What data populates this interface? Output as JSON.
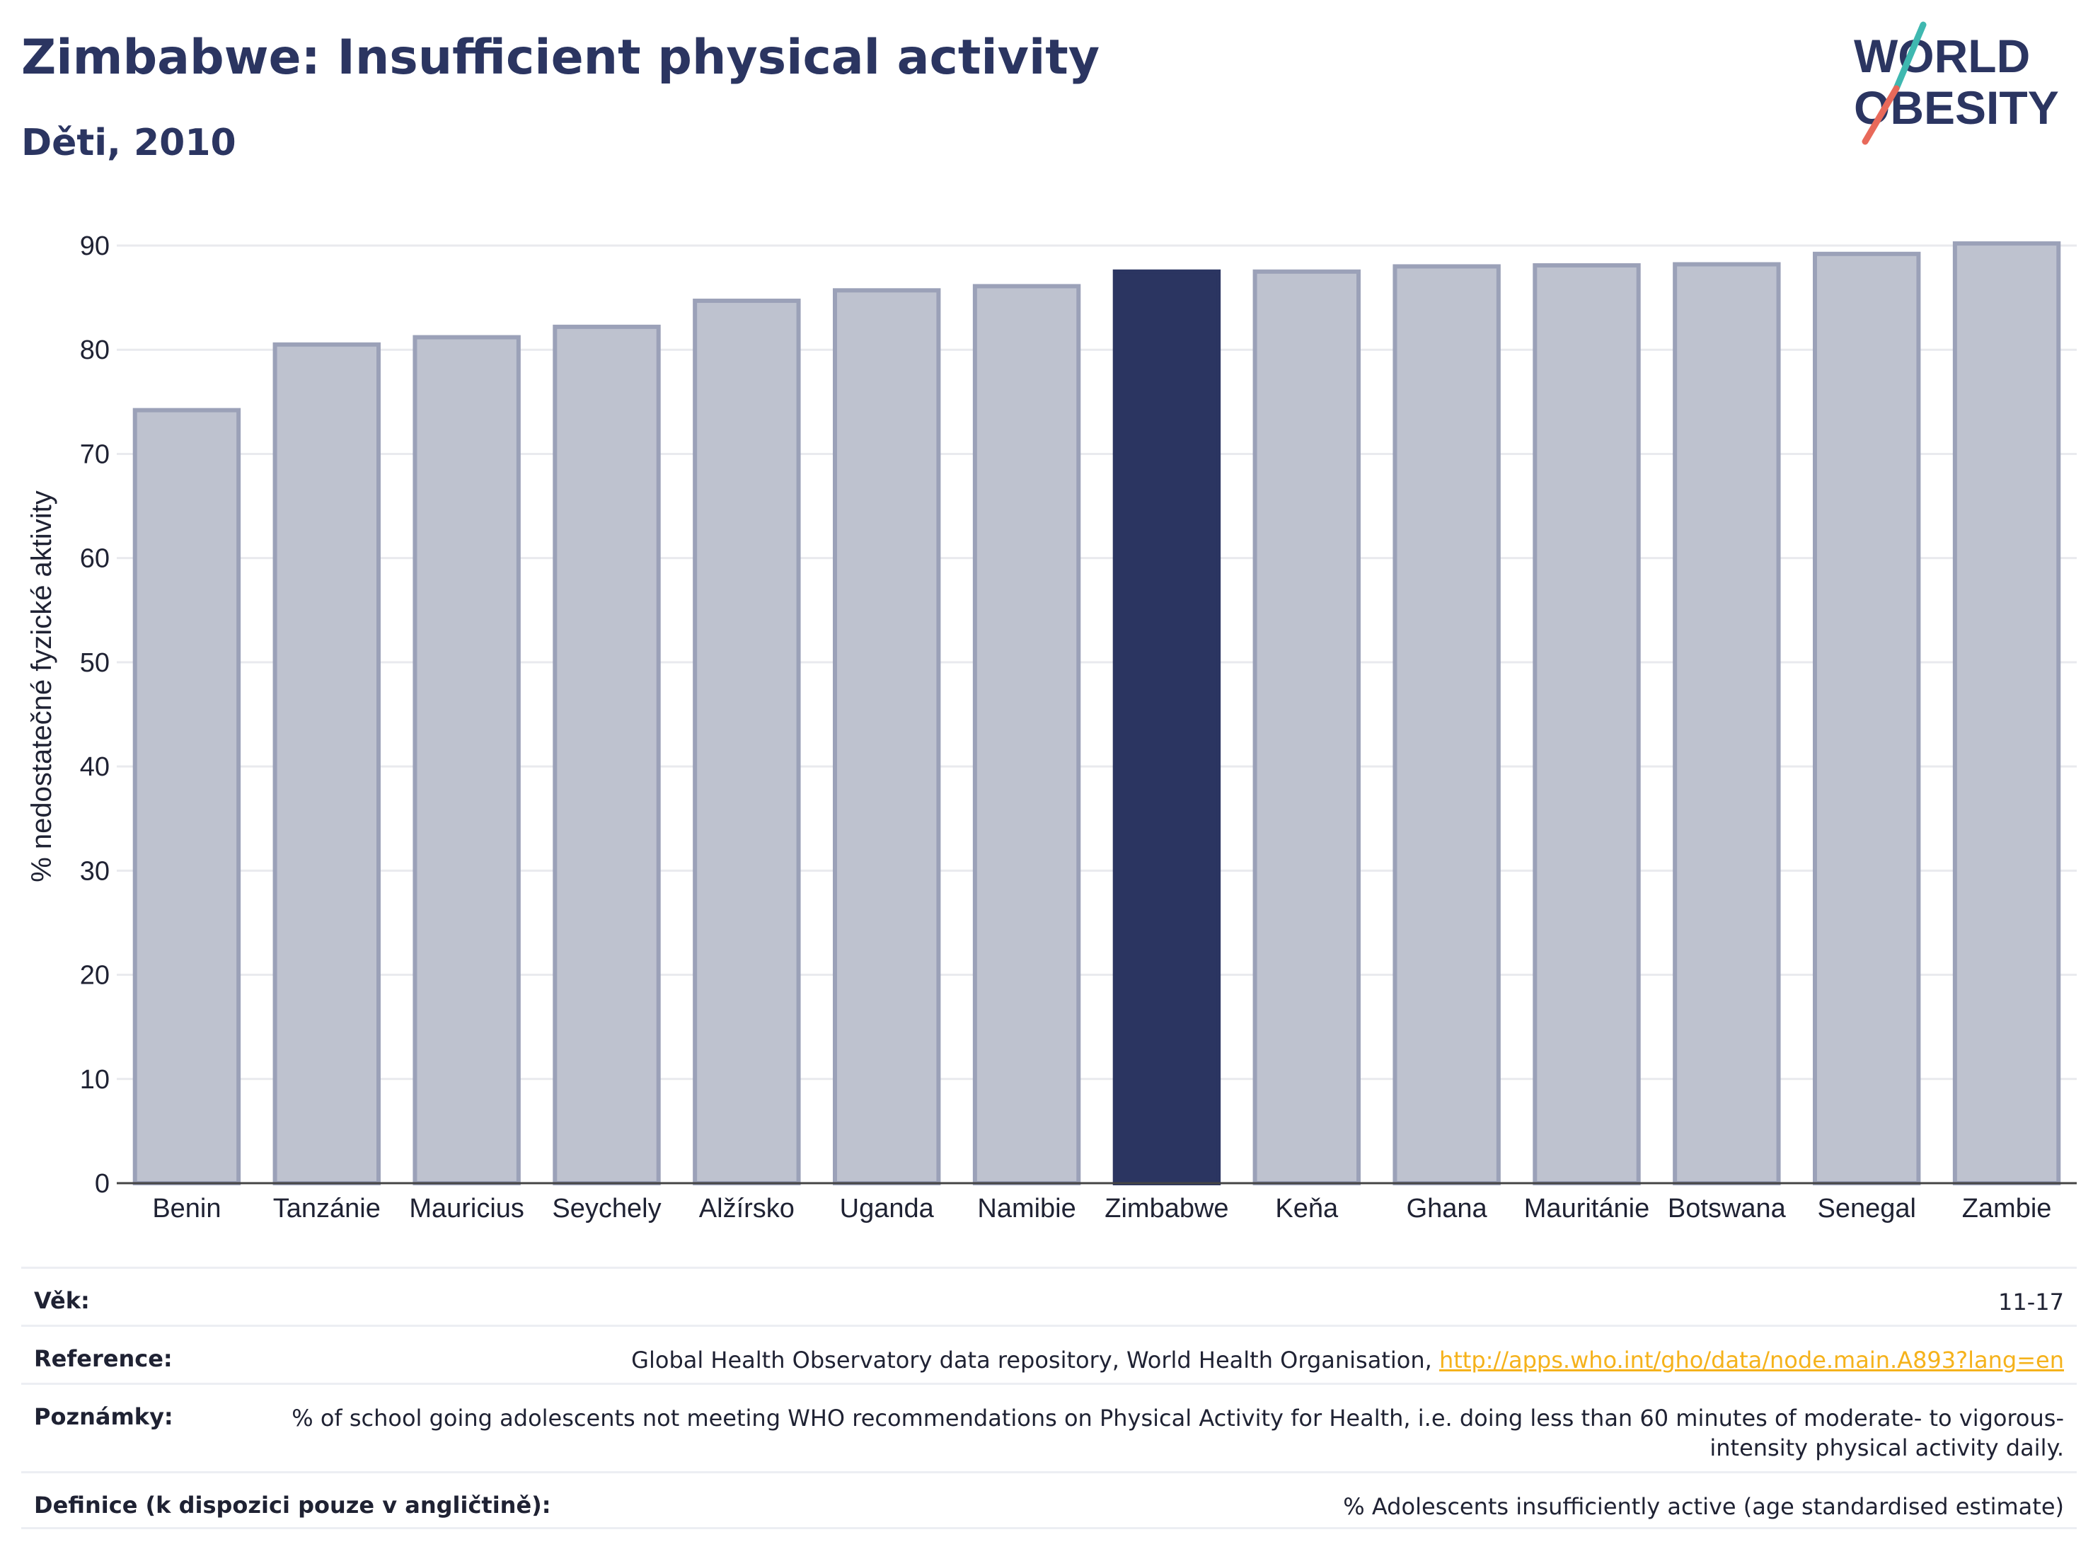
{
  "header": {
    "title": "Zimbabwe: Insufficient physical activity",
    "subtitle": "Děti, 2010"
  },
  "logo": {
    "line1": "WORLD",
    "line2": "OBESITY",
    "color_text": "#2b3561",
    "color_slash_top": "#3fb8b0",
    "color_slash_bottom": "#e8695a"
  },
  "colors": {
    "highlight_bar": "#2b3561",
    "other_bar_fill": "#bec2cf",
    "other_bar_stroke": "#9ba1b8",
    "grid": "#e9eaee",
    "axis": "#444444"
  },
  "chart_data": {
    "type": "bar",
    "title": "Zimbabwe: Insufficient physical activity",
    "subtitle": "Děti, 2010",
    "xlabel": "",
    "ylabel": "% nedostatečné fyzické aktivity",
    "categories": [
      "Benin",
      "Tanzánie",
      "Mauricius",
      "Seychely",
      "Alžírsko",
      "Uganda",
      "Namibie",
      "Zimbabwe",
      "Keňa",
      "Ghana",
      "Mauritánie",
      "Botswana",
      "Senegal",
      "Zambie"
    ],
    "values": [
      74.2,
      80.5,
      81.2,
      82.2,
      84.7,
      85.7,
      86.1,
      87.5,
      87.5,
      88.0,
      88.1,
      88.2,
      89.2,
      90.2
    ],
    "highlight": "Zimbabwe",
    "ylim": [
      0,
      90
    ],
    "yticks": [
      0,
      10,
      20,
      30,
      40,
      50,
      60,
      70,
      80,
      90
    ],
    "grid": true
  },
  "info": {
    "rows": [
      {
        "label": "Věk:",
        "value": "11-17"
      },
      {
        "label": "Reference:",
        "value": "Global Health Observatory data repository, World Health Organisation, ",
        "link": "http://apps.who.int/gho/data/node.main.A893?lang=en"
      },
      {
        "label": "Poznámky:",
        "value": "% of school going adolescents not meeting WHO recommendations on Physical Activity for Health, i.e. doing less than 60 minutes of moderate- to vigorous-intensity physical activity daily."
      },
      {
        "label": "Definice (k dispozici pouze v angličtině):",
        "value": "% Adolescents insufficiently active (age standardised estimate)"
      }
    ]
  }
}
